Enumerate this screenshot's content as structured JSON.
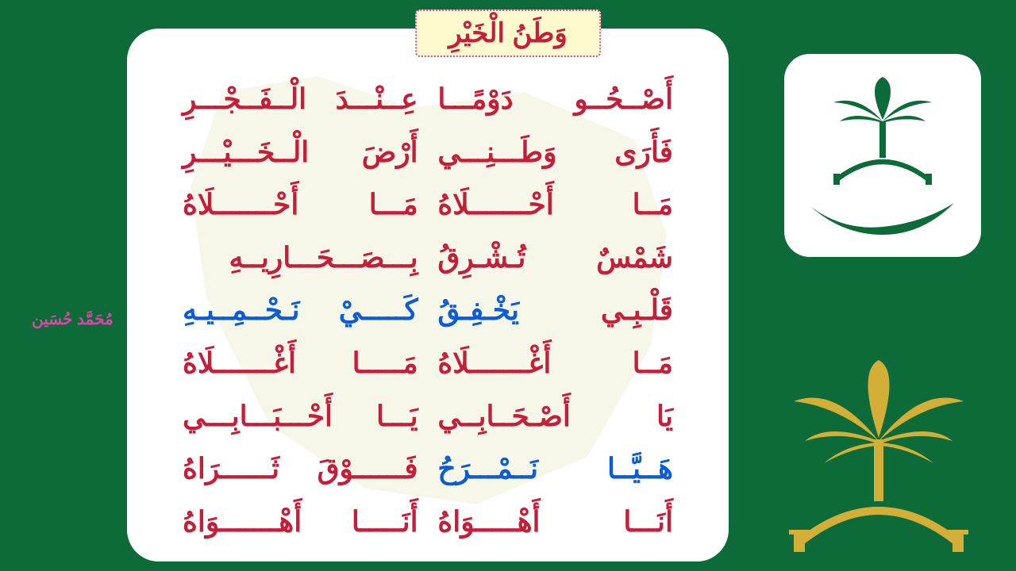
{
  "title": "وَطَنُ الْخَيْرِ",
  "colors": {
    "bg": "#0d6b3a",
    "card": "#ffffff",
    "title_bg": "#fffacd",
    "title_border": "#d946a8",
    "text_red": "#c41e3a",
    "text_blue": "#0b5cd6",
    "author": "#d946a8",
    "emblem_green": "#0d6b3a",
    "emblem_gold": "#d4af37"
  },
  "typography": {
    "title_fontsize": 34,
    "poem_fontsize": 36,
    "author_fontsize": 20,
    "font_family": "Traditional Arabic"
  },
  "author": "مُحَمَّد حُسَين",
  "poem": [
    {
      "first": "أَصْــحُــو دَوْمًـــا",
      "second": "عِــنْـــدَ الْــفَــجْـــرِ",
      "class": ""
    },
    {
      "first": "فَأَرَى وَطَـــنِـــي",
      "second": "أَرْضَ الْــخَـــيْـــرِ",
      "class": ""
    },
    {
      "first": "مَــا أَحْـــــــلَاهُ",
      "second": "مَـــا أَحْـــــــلَاهُ",
      "class": ""
    },
    {
      "first": "شَمْسٌ تُـشْـرِقُ",
      "second": "بِـــصَـــحَـــارِيــهِ",
      "class": ""
    },
    {
      "first": "قَلْـبِـي يَخْـفِـقُ",
      "second": "كَـــــيْ نَـحْــمِــيـهِ",
      "class": "blue"
    },
    {
      "first": "مَــا أَغْـــــــلَاهُ",
      "second": "مَـــــا أَغْـــــــلَاهُ",
      "class": ""
    },
    {
      "first": "يَا أَصْـحَــابِــي",
      "second": "يَـــا أَحْـــبَـــابِـــي",
      "class": ""
    },
    {
      "first": "هَــيَّــا نَــمْـــرَحُ",
      "second": "فَــــــوْقَ ثَــــــرَاهُ",
      "class": "blue"
    },
    {
      "first": "أَنَـــا أَهْـــــوَاهُ",
      "second": "أَنَـــــا أَهْـــــــوَاهُ",
      "class": ""
    }
  ]
}
